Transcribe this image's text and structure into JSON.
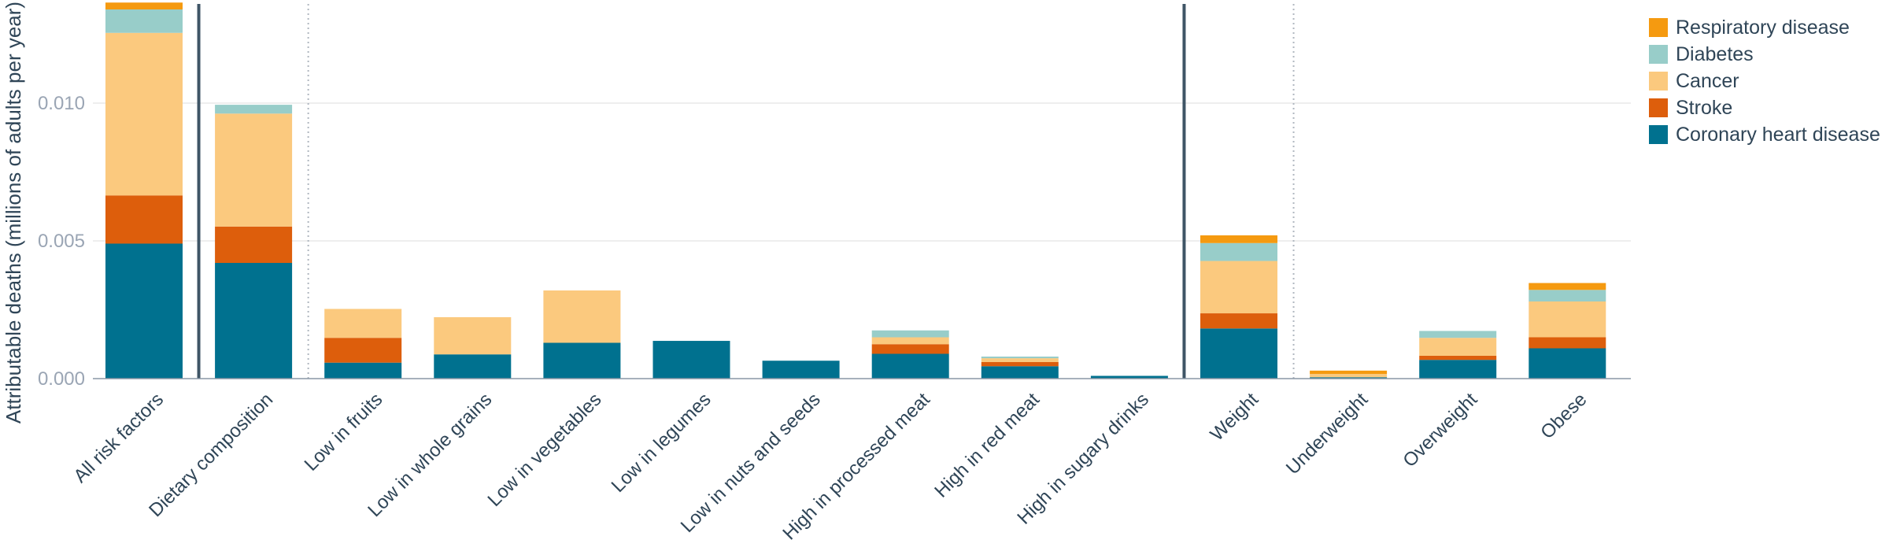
{
  "chart_data": {
    "type": "bar",
    "stacked": true,
    "ylabel": "Attributable deaths (millions of adults per year)",
    "xlabel": "",
    "ylim": [
      0,
      0.0136
    ],
    "yticks": [
      "0.000",
      "0.005",
      "0.010"
    ],
    "ytick_values": [
      0,
      0.005,
      0.01
    ],
    "grid": true,
    "legend_position": "top-right",
    "categories": [
      "All risk factors",
      "Dietary composition",
      "Low in fruits",
      "Low in whole grains",
      "Low in vegetables",
      "Low in legumes",
      "Low in nuts and seeds",
      "High in processed meat",
      "High in red meat",
      "High in sugary drinks",
      "Weight",
      "Underweight",
      "Overweight",
      "Obese"
    ],
    "series": [
      {
        "name": "Coronary heart disease",
        "color": "#00718f",
        "values": [
          0.0049,
          0.0042,
          0.00058,
          0.00088,
          0.0013,
          0.00137,
          0.00065,
          0.0009,
          0.00045,
          0.0001,
          0.00182,
          5e-05,
          0.00068,
          0.0011
        ]
      },
      {
        "name": "Stroke",
        "color": "#dd5e0c",
        "values": [
          0.00175,
          0.00132,
          0.0009,
          0.0,
          0.0,
          0.0,
          0.0,
          0.00035,
          0.00015,
          0.0,
          0.00055,
          0.0,
          0.00015,
          0.0004
        ]
      },
      {
        "name": "Cancer",
        "color": "#fbc97e",
        "values": [
          0.0059,
          0.0041,
          0.00105,
          0.00135,
          0.0019,
          0.0,
          0.0,
          0.00025,
          0.00014,
          0.0,
          0.0019,
          0.00012,
          0.00065,
          0.0013
        ]
      },
      {
        "name": "Diabetes",
        "color": "#98cdc9",
        "values": [
          0.00085,
          0.00032,
          0.0,
          0.0,
          0.0,
          0.0,
          0.0,
          0.00025,
          6e-05,
          0.0,
          0.00065,
          0.0,
          0.00025,
          0.00042
        ]
      },
      {
        "name": "Respiratory disease",
        "color": "#f59a10",
        "values": [
          0.00025,
          0.0,
          0.0,
          0.0,
          0.0,
          0.0,
          0.0,
          0.0,
          0.0,
          0.0,
          0.00028,
          0.00012,
          0.0,
          0.00025
        ]
      }
    ],
    "legend_order": [
      "Respiratory disease",
      "Diabetes",
      "Cancer",
      "Stroke",
      "Coronary heart disease"
    ]
  }
}
